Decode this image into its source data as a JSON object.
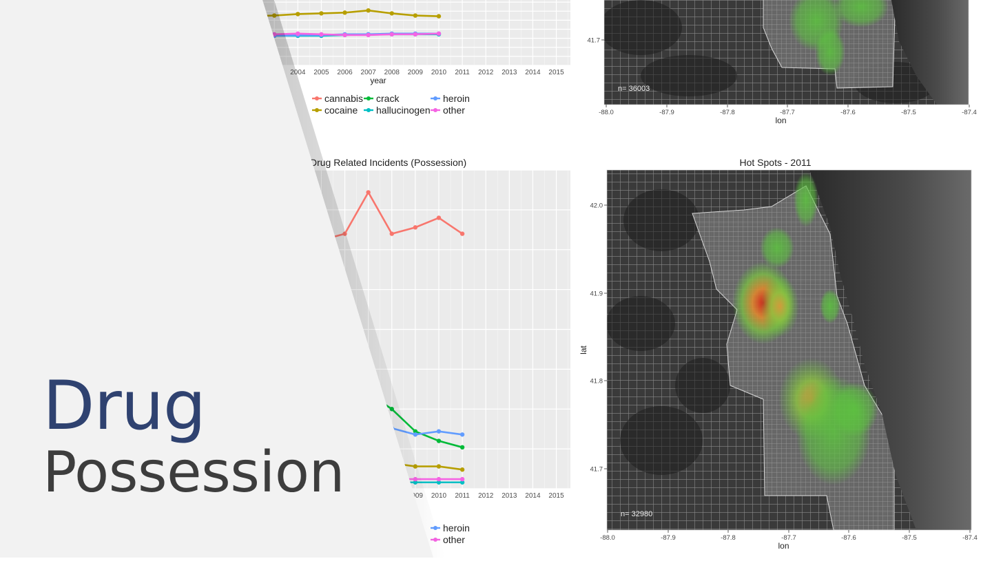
{
  "slide": {
    "title_main": "Drug",
    "title_sub": "Possession"
  },
  "colors": {
    "cannabis": "#f8766d",
    "cocaine": "#b79f00",
    "crack": "#00ba38",
    "hallucinogen": "#00bfc4",
    "heroin": "#619cff",
    "other": "#f564e3",
    "title_blue": "#2f4270",
    "panel_gray": "#ebebeb",
    "cover_gray": "#f2f2f2"
  },
  "chart_data": [
    {
      "type": "line",
      "id": "top_line",
      "title": "",
      "xlabel": "year",
      "ylabel": "",
      "x_ticks": [
        "2004",
        "2005",
        "2006",
        "2007",
        "2008",
        "2009",
        "2010",
        "2011",
        "2012",
        "2013",
        "2014",
        "2015"
      ],
      "xlim": [
        2001,
        2015.6
      ],
      "ylim": [
        0,
        100
      ],
      "grid": true,
      "legend_position": "bottom",
      "legend": [
        {
          "key": "cannabis",
          "label": "cannabis"
        },
        {
          "key": "crack",
          "label": "crack"
        },
        {
          "key": "heroin",
          "label": "heroin"
        },
        {
          "key": "cocaine",
          "label": "cocaine"
        },
        {
          "key": "hallucinogen",
          "label": "hallucinogen"
        },
        {
          "key": "other",
          "label": "other"
        }
      ],
      "series": [
        {
          "key": "cocaine",
          "x": [
            2001,
            2002,
            2003,
            2004,
            2005,
            2006,
            2007,
            2008,
            2009,
            2010
          ],
          "y": [
            67,
            68,
            69,
            71,
            72,
            73,
            76,
            72,
            69,
            68
          ]
        },
        {
          "key": "hallucinogen",
          "x": [
            2001,
            2002,
            2003,
            2004,
            2005,
            2006,
            2007,
            2008,
            2009,
            2010
          ],
          "y": [
            41,
            41,
            41,
            41,
            41,
            42,
            43,
            43,
            43,
            43
          ]
        },
        {
          "key": "heroin",
          "x": [
            2001,
            2002,
            2003,
            2004,
            2005,
            2006,
            2007,
            2008,
            2009,
            2010
          ],
          "y": [
            41,
            41,
            41,
            42,
            42,
            43,
            43,
            44,
            44,
            44
          ]
        },
        {
          "key": "other",
          "x": [
            2001,
            2002,
            2003,
            2004,
            2005,
            2006,
            2007,
            2008,
            2009,
            2010
          ],
          "y": [
            42,
            42,
            43,
            44,
            43,
            42,
            42,
            43,
            43,
            44
          ]
        }
      ]
    },
    {
      "type": "line",
      "id": "bottom_line",
      "title": "Drug Related Incidents (Possession)",
      "xlabel": "",
      "ylabel": "",
      "x_ticks": [
        "2009",
        "2010",
        "2011",
        "2012",
        "2013",
        "2014",
        "2015"
      ],
      "x_ticks_values": [
        2009,
        2010,
        2011,
        2012,
        2013,
        2014,
        2015
      ],
      "xlim": [
        2001,
        2015.6
      ],
      "ylim": [
        0,
        100
      ],
      "grid": true,
      "legend_position": "bottom",
      "legend": [
        {
          "key": "heroin",
          "label": "heroin"
        },
        {
          "key": "other",
          "label": "other"
        }
      ],
      "series": [
        {
          "key": "cannabis",
          "x": [
            2001,
            2002,
            2003,
            2004,
            2005,
            2006,
            2007,
            2008,
            2009,
            2010,
            2011
          ],
          "y": [
            80,
            79,
            80,
            80,
            78,
            80,
            93,
            80,
            82,
            85,
            80
          ]
        },
        {
          "key": "crack",
          "x": [
            2001,
            2002,
            2003,
            2004,
            2005,
            2006,
            2007,
            2008,
            2009,
            2010,
            2011
          ],
          "y": [
            52,
            50,
            48,
            45,
            40,
            35,
            30,
            25,
            18,
            15,
            13
          ]
        },
        {
          "key": "heroin",
          "x": [
            2001,
            2002,
            2003,
            2004,
            2005,
            2006,
            2007,
            2008,
            2009,
            2010,
            2011
          ],
          "y": [
            20,
            20,
            20,
            19,
            19,
            19,
            19,
            19,
            17,
            18,
            17
          ]
        },
        {
          "key": "cocaine",
          "x": [
            2001,
            2002,
            2003,
            2004,
            2005,
            2006,
            2007,
            2008,
            2009,
            2010,
            2011
          ],
          "y": [
            10,
            10,
            10,
            10,
            9,
            9,
            9,
            8,
            7,
            7,
            6
          ]
        },
        {
          "key": "hallucinogen",
          "x": [
            2001,
            2002,
            2003,
            2004,
            2005,
            2006,
            2007,
            2008,
            2009,
            2010,
            2011
          ],
          "y": [
            2,
            2,
            2,
            2,
            2,
            2,
            2,
            2,
            2,
            2,
            2
          ]
        },
        {
          "key": "other",
          "x": [
            2001,
            2002,
            2003,
            2004,
            2005,
            2006,
            2007,
            2008,
            2009,
            2010,
            2011
          ],
          "y": [
            3,
            3,
            3,
            3,
            3,
            3,
            3,
            3,
            3,
            3,
            3
          ]
        }
      ]
    },
    {
      "type": "heatmap",
      "id": "top_map",
      "title": "",
      "xlabel": "lon",
      "ylabel": "",
      "x_ticks": [
        "-88.0",
        "-87.9",
        "-87.8",
        "-87.7",
        "-87.6",
        "-87.5",
        "-87.4"
      ],
      "y_ticks": [
        "41.7"
      ],
      "annotation": "n= 36003"
    },
    {
      "type": "heatmap",
      "id": "bottom_map",
      "title": "Hot Spots -  2011",
      "xlabel": "lon",
      "ylabel": "lat",
      "x_ticks": [
        "-88.0",
        "-87.9",
        "-87.8",
        "-87.7",
        "-87.6",
        "-87.5",
        "-87.4"
      ],
      "y_ticks": [
        "42.0",
        "41.9",
        "41.8",
        "41.7"
      ],
      "annotation": "n= 32980"
    }
  ]
}
